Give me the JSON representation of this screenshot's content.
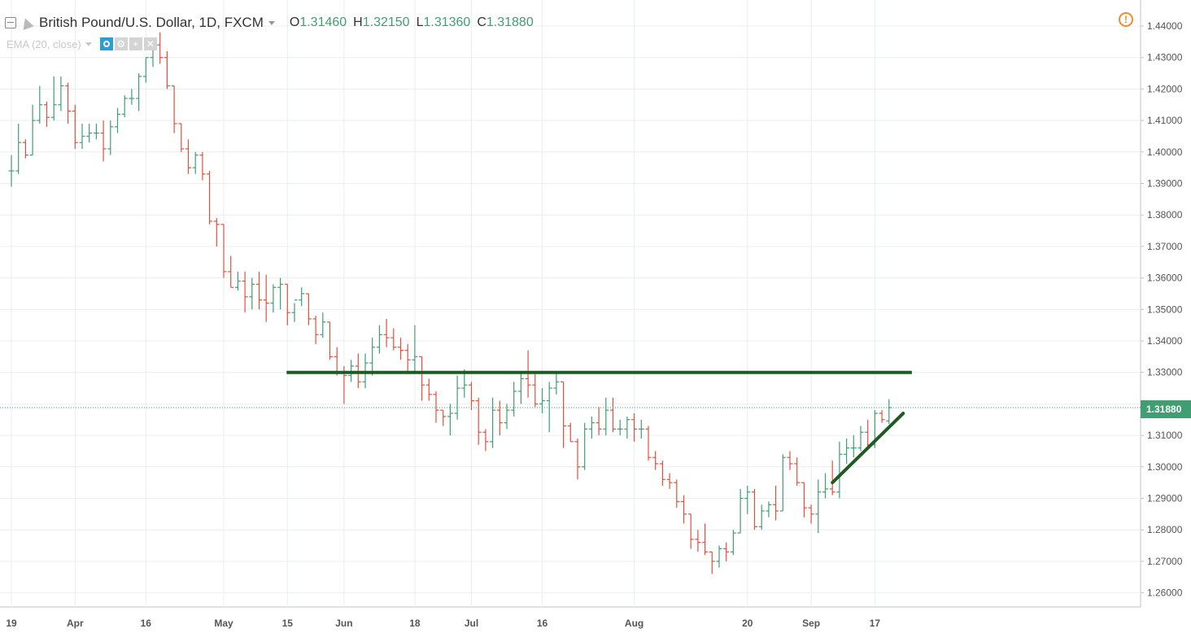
{
  "header": {
    "title": "British Pound/U.S. Dollar, 1D, FXCM",
    "ohlc": [
      {
        "key": "O",
        "value": "1.31460"
      },
      {
        "key": "H",
        "value": "1.32150"
      },
      {
        "key": "L",
        "value": "1.31360"
      },
      {
        "key": "C",
        "value": "1.31880"
      }
    ]
  },
  "indicator": {
    "label": "EMA (20, close)"
  },
  "alert_icon": "!",
  "colors": {
    "up": "#3f9f72",
    "down": "#e2503b",
    "trendline": "#1e5a22",
    "grid": "#e9eef3",
    "axis_text": "#555555"
  },
  "price_label": "1.31880",
  "chart_data": {
    "type": "ohlc-bars",
    "y_range": [
      1.256,
      1.442
    ],
    "y_ticks": [
      "1.44000",
      "1.43000",
      "1.42000",
      "1.41000",
      "1.40000",
      "1.39000",
      "1.38000",
      "1.37000",
      "1.36000",
      "1.35000",
      "1.34000",
      "1.33000",
      "1.32000",
      "1.31000",
      "1.30000",
      "1.29000",
      "1.28000",
      "1.27000",
      "1.26000"
    ],
    "x_labels": [
      {
        "label": "19",
        "bar": 0
      },
      {
        "label": "Apr",
        "bar": 9
      },
      {
        "label": "16",
        "bar": 19
      },
      {
        "label": "May",
        "bar": 30
      },
      {
        "label": "15",
        "bar": 39
      },
      {
        "label": "Jun",
        "bar": 47
      },
      {
        "label": "18",
        "bar": 57
      },
      {
        "label": "Jul",
        "bar": 65
      },
      {
        "label": "16",
        "bar": 75
      },
      {
        "label": "Aug",
        "bar": 88
      },
      {
        "label": "20",
        "bar": 104
      },
      {
        "label": "Sep",
        "bar": 113
      },
      {
        "label": "17",
        "bar": 122
      }
    ],
    "bars": [
      [
        1.394,
        1.399,
        1.389,
        1.394
      ],
      [
        1.394,
        1.409,
        1.393,
        1.403
      ],
      [
        1.403,
        1.404,
        1.398,
        1.399
      ],
      [
        1.399,
        1.415,
        1.399,
        1.41
      ],
      [
        1.41,
        1.421,
        1.409,
        1.415
      ],
      [
        1.415,
        1.416,
        1.408,
        1.411
      ],
      [
        1.411,
        1.424,
        1.41,
        1.415
      ],
      [
        1.415,
        1.424,
        1.413,
        1.421
      ],
      [
        1.421,
        1.422,
        1.409,
        1.413
      ],
      [
        1.413,
        1.415,
        1.401,
        1.403
      ],
      [
        1.403,
        1.409,
        1.401,
        1.405
      ],
      [
        1.405,
        1.409,
        1.403,
        1.406
      ],
      [
        1.406,
        1.409,
        1.404,
        1.406
      ],
      [
        1.406,
        1.41,
        1.397,
        1.401
      ],
      [
        1.401,
        1.41,
        1.399,
        1.408
      ],
      [
        1.408,
        1.414,
        1.406,
        1.412
      ],
      [
        1.412,
        1.418,
        1.411,
        1.417
      ],
      [
        1.417,
        1.42,
        1.415,
        1.417
      ],
      [
        1.417,
        1.425,
        1.413,
        1.424
      ],
      [
        1.424,
        1.43,
        1.422,
        1.43
      ],
      [
        1.43,
        1.434,
        1.427,
        1.434
      ],
      [
        1.434,
        1.438,
        1.428,
        1.43
      ],
      [
        1.43,
        1.432,
        1.42,
        1.421
      ],
      [
        1.421,
        1.421,
        1.406,
        1.409
      ],
      [
        1.409,
        1.409,
        1.4,
        1.401
      ],
      [
        1.401,
        1.404,
        1.393,
        1.395
      ],
      [
        1.395,
        1.4,
        1.393,
        1.399
      ],
      [
        1.399,
        1.4,
        1.391,
        1.393
      ],
      [
        1.393,
        1.394,
        1.377,
        1.378
      ],
      [
        1.378,
        1.379,
        1.37,
        1.377
      ],
      [
        1.377,
        1.377,
        1.36,
        1.362
      ],
      [
        1.362,
        1.367,
        1.357,
        1.357
      ],
      [
        1.357,
        1.362,
        1.356,
        1.359
      ],
      [
        1.359,
        1.362,
        1.349,
        1.354
      ],
      [
        1.354,
        1.36,
        1.35,
        1.358
      ],
      [
        1.358,
        1.362,
        1.35,
        1.353
      ],
      [
        1.353,
        1.361,
        1.346,
        1.352
      ],
      [
        1.352,
        1.358,
        1.349,
        1.357
      ],
      [
        1.357,
        1.36,
        1.35,
        1.358
      ],
      [
        1.358,
        1.358,
        1.345,
        1.349
      ],
      [
        1.349,
        1.352,
        1.346,
        1.353
      ],
      [
        1.353,
        1.357,
        1.351,
        1.355
      ],
      [
        1.355,
        1.355,
        1.345,
        1.347
      ],
      [
        1.347,
        1.348,
        1.339,
        1.342
      ],
      [
        1.342,
        1.349,
        1.341,
        1.346
      ],
      [
        1.346,
        1.346,
        1.334,
        1.335
      ],
      [
        1.335,
        1.338,
        1.329,
        1.33
      ],
      [
        1.33,
        1.332,
        1.32,
        1.329
      ],
      [
        1.329,
        1.334,
        1.327,
        1.332
      ],
      [
        1.332,
        1.336,
        1.325,
        1.327
      ],
      [
        1.327,
        1.336,
        1.325,
        1.333
      ],
      [
        1.333,
        1.341,
        1.329,
        1.338
      ],
      [
        1.338,
        1.345,
        1.336,
        1.342
      ],
      [
        1.342,
        1.347,
        1.338,
        1.341
      ],
      [
        1.341,
        1.344,
        1.337,
        1.338
      ],
      [
        1.338,
        1.341,
        1.334,
        1.337
      ],
      [
        1.337,
        1.339,
        1.33,
        1.334
      ],
      [
        1.334,
        1.345,
        1.33,
        1.335
      ],
      [
        1.335,
        1.335,
        1.321,
        1.326
      ],
      [
        1.326,
        1.328,
        1.321,
        1.323
      ],
      [
        1.323,
        1.324,
        1.314,
        1.318
      ],
      [
        1.318,
        1.318,
        1.313,
        1.316
      ],
      [
        1.316,
        1.32,
        1.31,
        1.317
      ],
      [
        1.317,
        1.329,
        1.315,
        1.325
      ],
      [
        1.325,
        1.331,
        1.322,
        1.326
      ],
      [
        1.326,
        1.327,
        1.318,
        1.321
      ],
      [
        1.321,
        1.322,
        1.307,
        1.311
      ],
      [
        1.311,
        1.312,
        1.305,
        1.308
      ],
      [
        1.308,
        1.322,
        1.306,
        1.318
      ],
      [
        1.318,
        1.321,
        1.31,
        1.314
      ],
      [
        1.314,
        1.32,
        1.312,
        1.318
      ],
      [
        1.318,
        1.327,
        1.316,
        1.324
      ],
      [
        1.324,
        1.33,
        1.32,
        1.328
      ],
      [
        1.328,
        1.337,
        1.322,
        1.326
      ],
      [
        1.326,
        1.33,
        1.319,
        1.32
      ],
      [
        1.32,
        1.325,
        1.317,
        1.321
      ],
      [
        1.321,
        1.327,
        1.311,
        1.325
      ],
      [
        1.325,
        1.33,
        1.323,
        1.327
      ],
      [
        1.327,
        1.327,
        1.306,
        1.313
      ],
      [
        1.313,
        1.314,
        1.308,
        1.308
      ],
      [
        1.308,
        1.309,
        1.296,
        1.3
      ],
      [
        1.3,
        1.314,
        1.299,
        1.312
      ],
      [
        1.312,
        1.316,
        1.309,
        1.314
      ],
      [
        1.314,
        1.319,
        1.31,
        1.312
      ],
      [
        1.312,
        1.322,
        1.31,
        1.318
      ],
      [
        1.318,
        1.322,
        1.311,
        1.312
      ],
      [
        1.312,
        1.315,
        1.31,
        1.312
      ],
      [
        1.312,
        1.316,
        1.309,
        1.315
      ],
      [
        1.315,
        1.317,
        1.308,
        1.312
      ],
      [
        1.312,
        1.315,
        1.309,
        1.312
      ],
      [
        1.312,
        1.313,
        1.302,
        1.303
      ],
      [
        1.303,
        1.305,
        1.299,
        1.301
      ],
      [
        1.301,
        1.302,
        1.294,
        1.296
      ],
      [
        1.296,
        1.298,
        1.293,
        1.295
      ],
      [
        1.295,
        1.296,
        1.287,
        1.289
      ],
      [
        1.289,
        1.291,
        1.282,
        1.285
      ],
      [
        1.285,
        1.285,
        1.274,
        1.277
      ],
      [
        1.277,
        1.28,
        1.273,
        1.276
      ],
      [
        1.276,
        1.282,
        1.272,
        1.273
      ],
      [
        1.273,
        1.273,
        1.266,
        1.27
      ],
      [
        1.27,
        1.275,
        1.268,
        1.274
      ],
      [
        1.274,
        1.276,
        1.27,
        1.273
      ],
      [
        1.273,
        1.28,
        1.272,
        1.279
      ],
      [
        1.279,
        1.293,
        1.279,
        1.29
      ],
      [
        1.29,
        1.294,
        1.285,
        1.292
      ],
      [
        1.292,
        1.293,
        1.28,
        1.281
      ],
      [
        1.281,
        1.288,
        1.28,
        1.286
      ],
      [
        1.286,
        1.289,
        1.284,
        1.288
      ],
      [
        1.288,
        1.294,
        1.283,
        1.286
      ],
      [
        1.286,
        1.304,
        1.286,
        1.303
      ],
      [
        1.303,
        1.305,
        1.299,
        1.301
      ],
      [
        1.301,
        1.303,
        1.294,
        1.295
      ],
      [
        1.295,
        1.295,
        1.284,
        1.287
      ],
      [
        1.287,
        1.288,
        1.282,
        1.285
      ],
      [
        1.285,
        1.296,
        1.279,
        1.292
      ],
      [
        1.292,
        1.298,
        1.29,
        1.293
      ],
      [
        1.293,
        1.302,
        1.291,
        1.292
      ],
      [
        1.292,
        1.308,
        1.29,
        1.304
      ],
      [
        1.304,
        1.309,
        1.301,
        1.306
      ],
      [
        1.306,
        1.31,
        1.303,
        1.306
      ],
      [
        1.306,
        1.313,
        1.305,
        1.311
      ],
      [
        1.311,
        1.315,
        1.306,
        1.307
      ],
      [
        1.307,
        1.318,
        1.306,
        1.317
      ],
      [
        1.317,
        1.318,
        1.314,
        1.315
      ],
      [
        1.3146,
        1.3215,
        1.3136,
        1.3188
      ]
    ],
    "horizontal_line": {
      "price": 1.33,
      "from_bar": 39,
      "to_bar": 127
    },
    "trend_line": {
      "from": {
        "bar": 116,
        "price": 1.295
      },
      "to": {
        "bar": 126,
        "price": 1.317
      }
    },
    "last_price": 1.3188
  }
}
